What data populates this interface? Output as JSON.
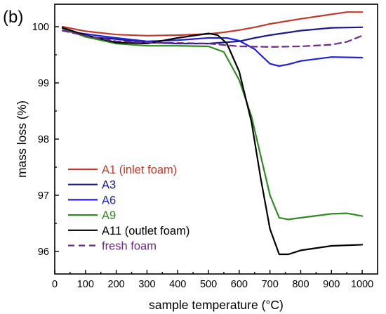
{
  "panel_label": "(b)",
  "chart_data": {
    "type": "line",
    "xlabel": "sample temperature (°C)",
    "ylabel": "mass loss (%)",
    "xlim": [
      0,
      1050
    ],
    "ylim": [
      95.6,
      100.4
    ],
    "xticks": [
      0,
      100,
      200,
      300,
      400,
      500,
      600,
      700,
      800,
      900,
      1000
    ],
    "yticks": [
      96,
      97,
      98,
      99,
      100
    ],
    "grid": false,
    "legend_position": "lower-left",
    "series": [
      {
        "name": "A1 (inlet foam)",
        "color": "#c0392b",
        "dash": "solid",
        "points": [
          [
            25,
            100.0
          ],
          [
            100,
            99.92
          ],
          [
            200,
            99.86
          ],
          [
            300,
            99.84
          ],
          [
            400,
            99.85
          ],
          [
            500,
            99.87
          ],
          [
            550,
            99.9
          ],
          [
            600,
            99.94
          ],
          [
            650,
            99.99
          ],
          [
            700,
            100.05
          ],
          [
            800,
            100.14
          ],
          [
            900,
            100.22
          ],
          [
            950,
            100.26
          ],
          [
            1000,
            100.26
          ]
        ]
      },
      {
        "name": "A3",
        "color": "#1a1a8c",
        "dash": "solid",
        "points": [
          [
            25,
            99.97
          ],
          [
            100,
            99.82
          ],
          [
            200,
            99.78
          ],
          [
            300,
            99.72
          ],
          [
            400,
            99.7
          ],
          [
            500,
            99.7
          ],
          [
            600,
            99.74
          ],
          [
            650,
            99.8
          ],
          [
            700,
            99.85
          ],
          [
            800,
            99.93
          ],
          [
            900,
            99.98
          ],
          [
            1000,
            99.99
          ]
        ]
      },
      {
        "name": "A6",
        "color": "#2020d8",
        "dash": "solid",
        "points": [
          [
            25,
            99.93
          ],
          [
            100,
            99.87
          ],
          [
            200,
            99.8
          ],
          [
            300,
            99.74
          ],
          [
            400,
            99.76
          ],
          [
            500,
            99.8
          ],
          [
            560,
            99.8
          ],
          [
            600,
            99.75
          ],
          [
            650,
            99.6
          ],
          [
            700,
            99.34
          ],
          [
            730,
            99.3
          ],
          [
            760,
            99.33
          ],
          [
            800,
            99.39
          ],
          [
            900,
            99.46
          ],
          [
            1000,
            99.45
          ]
        ]
      },
      {
        "name": "A9",
        "color": "#2e8b1f",
        "dash": "solid",
        "points": [
          [
            25,
            99.97
          ],
          [
            100,
            99.82
          ],
          [
            200,
            99.7
          ],
          [
            300,
            99.66
          ],
          [
            400,
            99.66
          ],
          [
            500,
            99.65
          ],
          [
            550,
            99.55
          ],
          [
            600,
            99.05
          ],
          [
            640,
            98.4
          ],
          [
            670,
            97.7
          ],
          [
            700,
            97.0
          ],
          [
            730,
            96.6
          ],
          [
            760,
            96.57
          ],
          [
            800,
            96.6
          ],
          [
            900,
            96.67
          ],
          [
            950,
            96.68
          ],
          [
            1000,
            96.63
          ]
        ]
      },
      {
        "name": "A11 (outlet foam)",
        "color": "#000000",
        "dash": "solid",
        "points": [
          [
            25,
            99.98
          ],
          [
            100,
            99.85
          ],
          [
            200,
            99.72
          ],
          [
            300,
            99.7
          ],
          [
            400,
            99.8
          ],
          [
            500,
            99.88
          ],
          [
            530,
            99.85
          ],
          [
            560,
            99.7
          ],
          [
            600,
            99.2
          ],
          [
            640,
            98.3
          ],
          [
            670,
            97.3
          ],
          [
            700,
            96.4
          ],
          [
            730,
            95.95
          ],
          [
            760,
            95.95
          ],
          [
            800,
            96.02
          ],
          [
            900,
            96.1
          ],
          [
            1000,
            96.12
          ]
        ]
      },
      {
        "name": "fresh foam",
        "color": "#6a2a86",
        "dash": "dashed",
        "points": [
          [
            25,
            99.93
          ],
          [
            100,
            99.84
          ],
          [
            200,
            99.74
          ],
          [
            300,
            99.72
          ],
          [
            400,
            99.71
          ],
          [
            500,
            99.7
          ],
          [
            600,
            99.65
          ],
          [
            700,
            99.64
          ],
          [
            800,
            99.65
          ],
          [
            900,
            99.68
          ],
          [
            950,
            99.73
          ],
          [
            1000,
            99.84
          ]
        ]
      }
    ]
  }
}
